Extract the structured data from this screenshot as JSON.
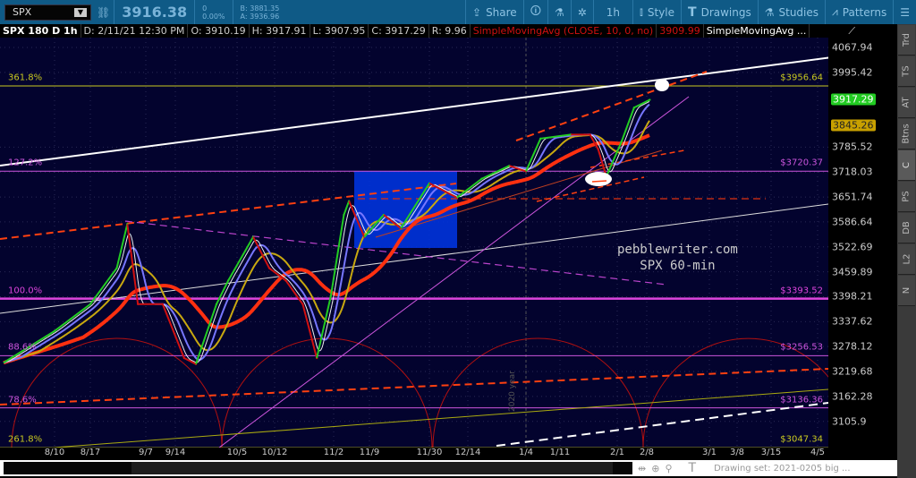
{
  "toolbar": {
    "symbol": "SPX",
    "last": "3916.38",
    "change": "0",
    "change_pct": "0.00%",
    "bid": "B: 3881.35",
    "ask": "A: 3936.96",
    "share": "Share",
    "interval": "1h",
    "style": "Style",
    "drawings": "Drawings",
    "studies": "Studies",
    "patterns": "Patterns"
  },
  "info": {
    "title": "SPX 180 D 1h",
    "date": "D: 2/11/21 12:30 PM",
    "open": "O: 3910.19",
    "high": "H: 3917.91",
    "low": "L: 3907.95",
    "close": "C: 3917.29",
    "range": "R: 9.96",
    "study1": "SimpleMovingAvg (CLOSE, 10, 0, no)",
    "study1_val": "3909.99",
    "study2": "SimpleMovingAvg ..."
  },
  "sidebar": [
    "Trd",
    "TS",
    "AT",
    "Btns",
    "C",
    "PS",
    "DB",
    "L2",
    "N"
  ],
  "bottom": {
    "drawing_set": "Drawing set: 2021-0205 big ..."
  },
  "watermark": {
    "line1": "pebblewriter.com",
    "line2": "SPX 60-min"
  },
  "colors": {
    "background": "#03032e",
    "up": "#22cc22",
    "down": "#d01010",
    "fib_violet": "#cc55dd",
    "fib_yellow": "#c8c820",
    "last_tag": "#22cc22",
    "ma_tag": "#c8a000"
  },
  "chart_data": {
    "type": "line",
    "scale": "log",
    "ylim": [
      3047,
      4100
    ],
    "y_ticks": [
      "4067.94",
      "3995.42",
      "3918.0",
      "3845.0",
      "3785.52",
      "3718.03",
      "3651.74",
      "3586.64",
      "3522.69",
      "3459.89",
      "3398.21",
      "3337.62",
      "3278.12",
      "3219.68",
      "3162.28",
      "3105.9"
    ],
    "y_tick_values": [
      4067.94,
      3995.42,
      null,
      null,
      3785.52,
      3718.03,
      3651.74,
      3586.64,
      3522.69,
      3459.89,
      3398.21,
      3337.62,
      3278.12,
      3219.68,
      3162.28,
      3105.9
    ],
    "x_ticks": [
      {
        "label": "8/10",
        "date": "2020-08-10"
      },
      {
        "label": "8/17",
        "date": "2020-08-17"
      },
      {
        "label": "9/7",
        "date": "2020-09-07"
      },
      {
        "label": "9/14",
        "date": "2020-09-14"
      },
      {
        "label": "10/5",
        "date": "2020-10-05"
      },
      {
        "label": "10/12",
        "date": "2020-10-12"
      },
      {
        "label": "11/2",
        "date": "2020-11-02"
      },
      {
        "label": "11/9",
        "date": "2020-11-09"
      },
      {
        "label": "11/30",
        "date": "2020-11-30"
      },
      {
        "label": "12/14",
        "date": "2020-12-14"
      },
      {
        "label": "1/4",
        "date": "2021-01-04"
      },
      {
        "label": "1/11",
        "date": "2021-01-11"
      },
      {
        "label": "2/1",
        "date": "2021-02-01"
      },
      {
        "label": "2/8",
        "date": "2021-02-08"
      },
      {
        "label": "3/1",
        "date": "2021-03-01"
      },
      {
        "label": "3/8",
        "date": "2021-03-08"
      },
      {
        "label": "3/15",
        "date": "2021-03-15"
      },
      {
        "label": "4/5",
        "date": "2021-04-05"
      }
    ],
    "year_marker": "2020 year",
    "last_price_tag": "3917.29",
    "ma_tag": "3845.26",
    "fib_levels": [
      {
        "pct": "361.8%",
        "price": 3956.64,
        "label": "$3956.64",
        "color": "#c8c820"
      },
      {
        "pct": "127.2%",
        "price": 3720.37,
        "label": "$3720.37",
        "color": "#cc55dd"
      },
      {
        "pct": "100.0%",
        "price": 3393.52,
        "label": "$3393.52",
        "color": "#dd44dd"
      },
      {
        "pct": "88.6%",
        "price": 3256.53,
        "label": "$3256.53",
        "color": "#cc55dd"
      },
      {
        "pct": "78.6%",
        "price": 3136.36,
        "label": "$3136.36",
        "color": "#cc55dd"
      },
      {
        "pct": "261.8%",
        "price": 3047.34,
        "label": "$3047.34",
        "color": "#c8c820"
      }
    ],
    "series": [
      {
        "values": [
          [
            "2020-07-31",
            3240
          ],
          [
            "2020-08-10",
            3315
          ],
          [
            "2020-08-17",
            3380
          ],
          [
            "2020-08-27",
            3469
          ],
          [
            "2020-08-31",
            3581
          ],
          [
            "2020-09-04",
            3380
          ],
          [
            "2020-09-11",
            3380
          ],
          [
            "2020-09-17",
            3251
          ],
          [
            "2020-09-21",
            3237
          ],
          [
            "2020-09-28",
            3380
          ],
          [
            "2020-10-02",
            3438
          ],
          [
            "2020-10-08",
            3548
          ],
          [
            "2020-10-11",
            3469
          ],
          [
            "2020-10-16",
            3438
          ],
          [
            "2020-10-22",
            3380
          ],
          [
            "2020-10-27",
            3251
          ],
          [
            "2020-11-01",
            3400
          ],
          [
            "2020-11-04",
            3605
          ],
          [
            "2020-11-05",
            3641
          ],
          [
            "2020-11-08",
            3548
          ],
          [
            "2020-11-14",
            3605
          ],
          [
            "2020-11-20",
            3570
          ],
          [
            "2020-11-30",
            3688
          ],
          [
            "2020-12-10",
            3650
          ],
          [
            "2020-12-19",
            3700
          ],
          [
            "2020-12-29",
            3735
          ],
          [
            "2021-01-04",
            3720
          ],
          [
            "2021-01-07",
            3809
          ],
          [
            "2021-01-15",
            3820
          ],
          [
            "2021-01-22",
            3820
          ],
          [
            "2021-01-25",
            3780
          ],
          [
            "2021-01-28",
            3706
          ],
          [
            "2021-02-02",
            3800
          ],
          [
            "2021-02-05",
            3895
          ],
          [
            "2021-02-09",
            3917
          ]
        ]
      }
    ]
  }
}
